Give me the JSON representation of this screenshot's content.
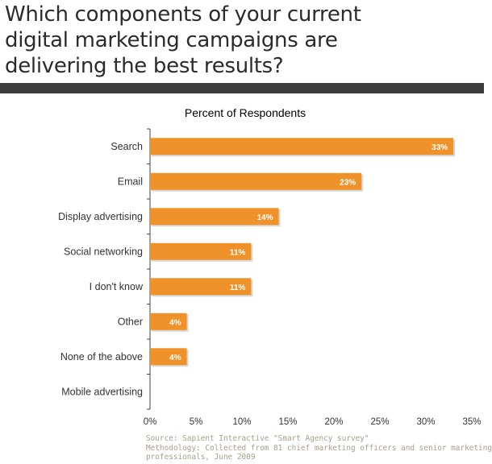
{
  "headline": {
    "line1": "Which components of your current",
    "line2": "digital marketing campaigns are",
    "line3": "delivering the best results?"
  },
  "footer": {
    "source": "Source: Sapient Interactive \"Smart Agency survey\"",
    "methodology_line1": "Methodology:  Collected from 81 chief marketing officers and senior marketing",
    "methodology_line2": "professionals, June 2009"
  },
  "colors": {
    "bar": "#f0922a",
    "divider": "#3c3c3c",
    "footer_text": "#a89f8a"
  },
  "chart_data": {
    "type": "bar",
    "orientation": "horizontal",
    "title": "Percent of Respondents",
    "categories": [
      "Search",
      "Email",
      "Display advertising",
      "Social networking",
      "I don't know",
      "Other",
      "None of the above",
      "Mobile advertising"
    ],
    "values": [
      33,
      23,
      14,
      11,
      11,
      4,
      4,
      0
    ],
    "data_labels": [
      "33%",
      "23%",
      "14%",
      "11%",
      "11%",
      "4%",
      "4%",
      ""
    ],
    "xlim": [
      0,
      35
    ],
    "xticks": [
      0,
      5,
      10,
      15,
      20,
      25,
      30,
      35
    ],
    "xtick_labels": [
      "0%",
      "5%",
      "10%",
      "15%",
      "20%",
      "25%",
      "30%",
      "35%"
    ],
    "xlabel": "",
    "ylabel": "",
    "grid": false,
    "legend": "none"
  }
}
